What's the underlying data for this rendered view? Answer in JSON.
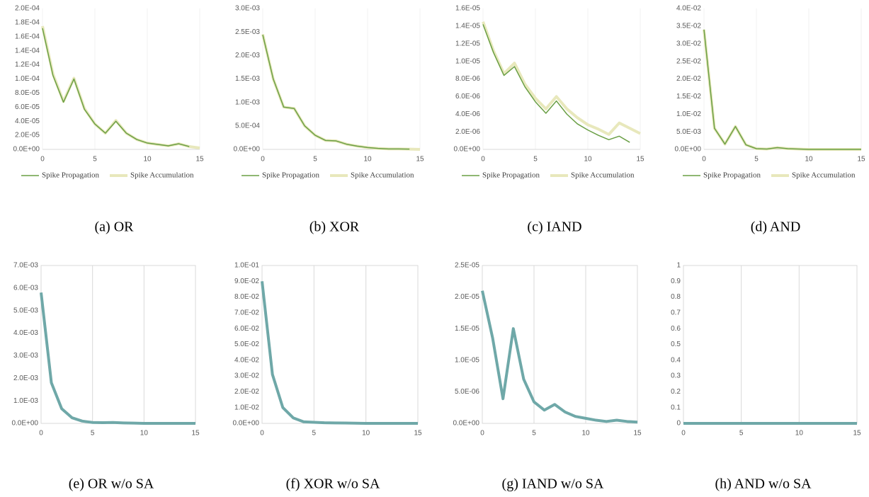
{
  "chart_data": [
    {
      "type": "line",
      "caption": "(a)  OR",
      "x": [
        0,
        1,
        2,
        3,
        4,
        5,
        6,
        7,
        8,
        9,
        10,
        11,
        12,
        13,
        14,
        15
      ],
      "xlim": [
        0,
        15
      ],
      "xticks": [
        0,
        5,
        10,
        15
      ],
      "ylim": [
        0,
        0.0002
      ],
      "yticks": [
        {
          "value": 0,
          "label": "0.0E+00"
        },
        {
          "value": 2e-05,
          "label": "2.0E-05"
        },
        {
          "value": 4e-05,
          "label": "4.0E-05"
        },
        {
          "value": 6e-05,
          "label": "6.0E-05"
        },
        {
          "value": 8e-05,
          "label": "8.0E-05"
        },
        {
          "value": 0.0001,
          "label": "1.0E-04"
        },
        {
          "value": 0.00012,
          "label": "1.2E-04"
        },
        {
          "value": 0.00014,
          "label": "1.4E-04"
        },
        {
          "value": 0.00016,
          "label": "1.6E-04"
        },
        {
          "value": 0.00018,
          "label": "1.8E-04"
        },
        {
          "value": 0.0002,
          "label": "2.0E-04"
        }
      ],
      "grid": "x",
      "series": [
        {
          "name": "Spike Propagation",
          "color": "#6a9f45",
          "width": 1.5,
          "values": [
            0.000172,
            0.000105,
            6.7e-05,
            0.0001,
            5.7e-05,
            3.6e-05,
            2.3e-05,
            4e-05,
            2.3e-05,
            1.4e-05,
            9e-06,
            7e-06,
            5e-06,
            8e-06,
            4e-06,
            null
          ]
        },
        {
          "name": "Spike Accumulation",
          "color": "#e8e8bc",
          "width": 4,
          "values": [
            0.000175,
            0.000107,
            6.8e-05,
            0.000101,
            5.8e-05,
            3.6e-05,
            2.3e-05,
            4.1e-05,
            2.3e-05,
            1.4e-05,
            9e-06,
            7e-06,
            5e-06,
            8e-06,
            4e-06,
            2e-06
          ]
        }
      ]
    },
    {
      "type": "line",
      "caption": "(b)  XOR",
      "x": [
        0,
        1,
        2,
        3,
        4,
        5,
        6,
        7,
        8,
        9,
        10,
        11,
        12,
        13,
        14,
        15
      ],
      "xlim": [
        0,
        15
      ],
      "xticks": [
        0,
        5,
        10,
        15
      ],
      "ylim": [
        0,
        0.003
      ],
      "yticks": [
        {
          "value": 0,
          "label": "0.0E+00"
        },
        {
          "value": 0.0005,
          "label": "5.0E-04"
        },
        {
          "value": 0.001,
          "label": "1.0E-03"
        },
        {
          "value": 0.0015,
          "label": "1.5E-03"
        },
        {
          "value": 0.002,
          "label": "2.0E-03"
        },
        {
          "value": 0.0025,
          "label": "2.5E-03"
        },
        {
          "value": 0.003,
          "label": "3.0E-03"
        }
      ],
      "grid": "x",
      "series": [
        {
          "name": "Spike Propagation",
          "color": "#6a9f45",
          "width": 1.5,
          "values": [
            0.00244,
            0.0015,
            0.0009,
            0.00087,
            0.0005,
            0.0003,
            0.00019,
            0.00018,
            0.00011,
            7e-05,
            4e-05,
            2e-05,
            1e-05,
            1e-05,
            5e-06,
            null
          ]
        },
        {
          "name": "Spike Accumulation",
          "color": "#e8e8bc",
          "width": 4,
          "values": [
            0.00245,
            0.0015,
            0.0009,
            0.00087,
            0.0005,
            0.0003,
            0.00019,
            0.00018,
            0.00011,
            7e-05,
            4e-05,
            2e-05,
            1e-05,
            1e-05,
            5e-06,
            0
          ]
        }
      ]
    },
    {
      "type": "line",
      "caption": "(c)  IAND",
      "x": [
        0,
        1,
        2,
        3,
        4,
        5,
        6,
        7,
        8,
        9,
        10,
        11,
        12,
        13,
        14,
        15
      ],
      "xlim": [
        0,
        15
      ],
      "xticks": [
        0,
        5,
        10,
        15
      ],
      "ylim": [
        0,
        1.6e-05
      ],
      "yticks": [
        {
          "value": 0,
          "label": "0.0E+00"
        },
        {
          "value": 2e-06,
          "label": "2.0E-06"
        },
        {
          "value": 4e-06,
          "label": "4.0E-06"
        },
        {
          "value": 6e-06,
          "label": "6.0E-06"
        },
        {
          "value": 8e-06,
          "label": "8.0E-06"
        },
        {
          "value": 1e-05,
          "label": "1.0E-05"
        },
        {
          "value": 1.2e-05,
          "label": "1.2E-05"
        },
        {
          "value": 1.4e-05,
          "label": "1.4E-05"
        },
        {
          "value": 1.6e-05,
          "label": "1.6E-05"
        }
      ],
      "grid": "x",
      "series": [
        {
          "name": "Spike Propagation",
          "color": "#6a9f45",
          "width": 1.5,
          "values": [
            1.42e-05,
            1.1e-05,
            8.4e-06,
            9.4e-06,
            7.1e-06,
            5.4e-06,
            4.1e-06,
            5.5e-06,
            4e-06,
            2.9e-06,
            2.2e-06,
            1.6e-06,
            1.1e-06,
            1.5e-06,
            8e-07,
            null
          ]
        },
        {
          "name": "Spike Accumulation",
          "color": "#e8e8bc",
          "width": 4,
          "values": [
            1.45e-05,
            1.12e-05,
            8.6e-06,
            9.8e-06,
            7.4e-06,
            5.8e-06,
            4.6e-06,
            6e-06,
            4.6e-06,
            3.6e-06,
            2.8e-06,
            2.3e-06,
            1.7e-06,
            3e-06,
            2.4e-06,
            1.8e-06
          ]
        }
      ]
    },
    {
      "type": "line",
      "caption": "(d)  AND",
      "x": [
        0,
        1,
        2,
        3,
        4,
        5,
        6,
        7,
        8,
        9,
        10,
        11,
        12,
        13,
        14,
        15
      ],
      "xlim": [
        0,
        15
      ],
      "xticks": [
        0,
        5,
        10,
        15
      ],
      "ylim": [
        0,
        0.04
      ],
      "yticks": [
        {
          "value": 0,
          "label": "0.0E+00"
        },
        {
          "value": 0.005,
          "label": "5.0E-03"
        },
        {
          "value": 0.01,
          "label": "1.0E-02"
        },
        {
          "value": 0.015,
          "label": "1.5E-02"
        },
        {
          "value": 0.02,
          "label": "2.0E-02"
        },
        {
          "value": 0.025,
          "label": "2.5E-02"
        },
        {
          "value": 0.03,
          "label": "3.0E-02"
        },
        {
          "value": 0.035,
          "label": "3.5E-02"
        },
        {
          "value": 0.04,
          "label": "4.0E-02"
        }
      ],
      "grid": "x",
      "series": [
        {
          "name": "Spike Propagation",
          "color": "#6a9f45",
          "width": 1.5,
          "values": [
            0.034,
            0.006,
            0.0015,
            0.0065,
            0.0013,
            0.0002,
            0.0001,
            0.0005,
            0.0002,
            0.0001,
            0,
            0,
            0,
            0,
            0,
            0
          ]
        },
        {
          "name": "Spike Accumulation",
          "color": "#e8e8bc",
          "width": 4,
          "values": [
            0.034,
            0.006,
            0.0015,
            0.0065,
            0.0013,
            0.0002,
            0.0001,
            0.0005,
            0.0002,
            0.0001,
            0,
            0,
            0,
            0,
            0,
            0
          ]
        }
      ]
    },
    {
      "type": "line",
      "caption": "(e)  OR w/o SA",
      "x": [
        0,
        1,
        2,
        3,
        4,
        5,
        6,
        7,
        8,
        9,
        10,
        11,
        12,
        13,
        14,
        15
      ],
      "xlim": [
        0,
        15
      ],
      "xticks": [
        0,
        5,
        10,
        15
      ],
      "ylim": [
        0,
        0.007
      ],
      "yticks": [
        {
          "value": 0,
          "label": "0.0E+00"
        },
        {
          "value": 0.001,
          "label": "1.0E-03"
        },
        {
          "value": 0.002,
          "label": "2.0E-03"
        },
        {
          "value": 0.003,
          "label": "3.0E-03"
        },
        {
          "value": 0.004,
          "label": "4.0E-03"
        },
        {
          "value": 0.005,
          "label": "5.0E-03"
        },
        {
          "value": 0.006,
          "label": "6.0E-03"
        },
        {
          "value": 0.007,
          "label": "7.0E-03"
        }
      ],
      "grid": "x",
      "series": [
        {
          "color": "#6fa8a8",
          "width": 4,
          "values": [
            0.0058,
            0.0018,
            0.00065,
            0.00025,
            0.0001,
            4e-05,
            3e-05,
            4e-05,
            2e-05,
            1e-05,
            0,
            0,
            0,
            0,
            0,
            0
          ]
        }
      ]
    },
    {
      "type": "line",
      "caption": "(f)  XOR w/o SA",
      "x": [
        0,
        1,
        2,
        3,
        4,
        5,
        6,
        7,
        8,
        9,
        10,
        11,
        12,
        13,
        14,
        15
      ],
      "xlim": [
        0,
        15
      ],
      "xticks": [
        0,
        5,
        10,
        15
      ],
      "ylim": [
        0,
        0.1
      ],
      "yticks": [
        {
          "value": 0,
          "label": "0.0E+00"
        },
        {
          "value": 0.01,
          "label": "1.0E-02"
        },
        {
          "value": 0.02,
          "label": "2.0E-02"
        },
        {
          "value": 0.03,
          "label": "3.0E-02"
        },
        {
          "value": 0.04,
          "label": "4.0E-02"
        },
        {
          "value": 0.05,
          "label": "5.0E-02"
        },
        {
          "value": 0.06,
          "label": "6.0E-02"
        },
        {
          "value": 0.07,
          "label": "7.0E-02"
        },
        {
          "value": 0.08,
          "label": "8.0E-02"
        },
        {
          "value": 0.09,
          "label": "9.0E-02"
        },
        {
          "value": 0.1,
          "label": "1.0E-01"
        }
      ],
      "grid": "x",
      "series": [
        {
          "color": "#6fa8a8",
          "width": 4,
          "values": [
            0.09,
            0.031,
            0.01,
            0.0035,
            0.001,
            0.0007,
            0.0004,
            0.0003,
            0.0002,
            0.0001,
            0,
            0,
            0,
            0,
            0,
            0
          ]
        }
      ]
    },
    {
      "type": "line",
      "caption": "(g)  IAND w/o SA",
      "x": [
        0,
        1,
        2,
        3,
        4,
        5,
        6,
        7,
        8,
        9,
        10,
        11,
        12,
        13,
        14,
        15
      ],
      "xlim": [
        0,
        15
      ],
      "xticks": [
        0,
        5,
        10,
        15
      ],
      "ylim": [
        0,
        2.5e-05
      ],
      "yticks": [
        {
          "value": 0,
          "label": "0.0E+00"
        },
        {
          "value": 5e-06,
          "label": "5.0E-06"
        },
        {
          "value": 1e-05,
          "label": "1.0E-05"
        },
        {
          "value": 1.5e-05,
          "label": "1.5E-05"
        },
        {
          "value": 2e-05,
          "label": "2.0E-05"
        },
        {
          "value": 2.5e-05,
          "label": "2.5E-05"
        }
      ],
      "grid": "x",
      "series": [
        {
          "color": "#6fa8a8",
          "width": 4,
          "values": [
            2.1e-05,
            1.35e-05,
            3.9e-06,
            1.5e-05,
            7e-06,
            3.4e-06,
            2.1e-06,
            3e-06,
            1.8e-06,
            1.1e-06,
            8e-07,
            5e-07,
            3e-07,
            5e-07,
            3e-07,
            2e-07
          ]
        }
      ]
    },
    {
      "type": "line",
      "caption": "(h)  AND w/o SA",
      "x": [
        0,
        1,
        2,
        3,
        4,
        5,
        6,
        7,
        8,
        9,
        10,
        11,
        12,
        13,
        14,
        15
      ],
      "xlim": [
        0,
        15
      ],
      "xticks": [
        0,
        5,
        10,
        15
      ],
      "ylim": [
        0,
        1
      ],
      "yticks": [
        0,
        0.1,
        0.2,
        0.3,
        0.4,
        0.5,
        0.6,
        0.7,
        0.8,
        0.9,
        1
      ],
      "grid": "x",
      "series": [
        {
          "color": "#6fa8a8",
          "width": 4,
          "values": [
            0,
            0,
            0,
            0,
            0,
            0,
            0,
            0,
            0,
            0,
            0,
            0,
            0,
            0,
            0,
            0
          ]
        }
      ]
    }
  ]
}
